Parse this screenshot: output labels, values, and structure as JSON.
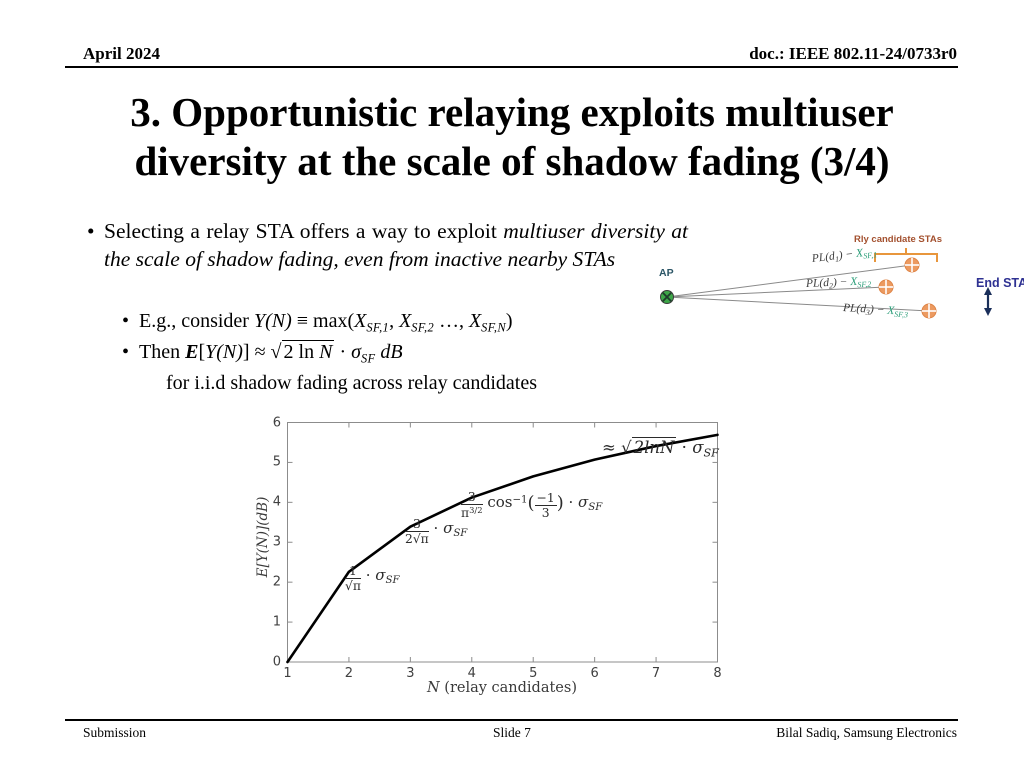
{
  "header": {
    "date": "April 2024",
    "doc_number": "doc.: IEEE 802.11-24/0733r0"
  },
  "title": {
    "line1": "3. Opportunistic relaying exploits multiuser",
    "line2": "diversity at the scale of shadow fading (3/4)"
  },
  "content": {
    "bullet1": {
      "marker": "•",
      "normal": "Selecting a relay STA offers a way to exploit ",
      "italic": "multiuser diversity at the scale of shadow fading, even from inactive nearby STAs"
    },
    "bullet2": {
      "marker": "•",
      "pre": "E.g., consider ",
      "v": "Y(N)",
      "mid": " ≡ max",
      "open": "(",
      "x1": "X",
      "s1": "SF,1",
      "c1": ", ",
      "x2": "X",
      "s2": "SF,2",
      "c2": " …, ",
      "x3": "X",
      "s3": "SF,N",
      "close": ")"
    },
    "bullet3": {
      "marker": "•",
      "pre": "Then ",
      "E": "E",
      "br1": "[",
      "v": "Y(N)",
      "br2": "] ≈ ",
      "root": "√",
      "rad1": "2 ln ",
      "radN": "N",
      "dot": " · ",
      "sigma": "σ",
      "sub": "SF",
      "unit": "  dB"
    },
    "line4": "for i.i.d shadow fading across relay candidates"
  },
  "diagram": {
    "rly_label": "Rly candidate STAs",
    "ap_label": "AP",
    "end_label": "End STA",
    "links": [
      {
        "p1": "PL(d",
        "ps": "1",
        "p2": ") − ",
        "x": "X",
        "xs": "SF,1"
      },
      {
        "p1": "PL(d",
        "ps": "2",
        "p2": ") − ",
        "x": "X",
        "xs": "SF,2"
      },
      {
        "p1": "PL(d",
        "ps": "3",
        "p2": ") − ",
        "x": "X",
        "xs": "SF,3"
      }
    ],
    "colors": {
      "sta_fill": "#EC9A60",
      "sta_stroke": "#DE8446",
      "ap_fill": "#3DA648",
      "bracket": "#E8963C",
      "rly_text": "#A3502E",
      "end_text": "#2E3192",
      "x_text": "#2A9D78",
      "link_line": "#8A8A8A",
      "arrow": "#1A2F5A"
    }
  },
  "chart_data": {
    "type": "line",
    "x": [
      1,
      2,
      3,
      4,
      5,
      6,
      7,
      8
    ],
    "y": [
      0,
      2.26,
      3.39,
      4.12,
      4.65,
      5.07,
      5.41,
      5.69
    ],
    "title": "",
    "xlabel": "N (relay candidates)",
    "xlabel_var": "N",
    "xlabel_rest": " (relay candidates)",
    "ylabel": "E[Y(N)](dB)",
    "xlim": [
      1,
      8
    ],
    "ylim": [
      0,
      6
    ],
    "xticks": [
      1,
      2,
      3,
      4,
      5,
      6,
      7,
      8
    ],
    "yticks": [
      0,
      1,
      2,
      3,
      4,
      5,
      6
    ],
    "grid": false,
    "legend": null,
    "line_color": "#000000",
    "axis_color": "#8C8C8C",
    "annotations": [
      {
        "num": "1",
        "den": "√π",
        "dot": " · ",
        "sigma": "σ",
        "sub": "SF"
      },
      {
        "num": "3",
        "den": "2√π",
        "dot": " · ",
        "sigma": "σ",
        "sub": "SF"
      },
      {
        "num": "3",
        "den_base": "π",
        "den_sup": "3/2",
        "fn": "cos",
        "fn_sup": "−1",
        "open": "(",
        "inum": "−1",
        "iden": "3",
        "close": ")",
        "dot": " · ",
        "sigma": "σ",
        "sub": "SF"
      },
      {
        "approx": "≈ ",
        "root": "√",
        "radicand": "2lnN",
        "dot": " · ",
        "sigma": "σ",
        "sub": "SF"
      }
    ]
  },
  "footer": {
    "left": "Submission",
    "center": "Slide 7",
    "right": "Bilal Sadiq, Samsung Electronics"
  }
}
